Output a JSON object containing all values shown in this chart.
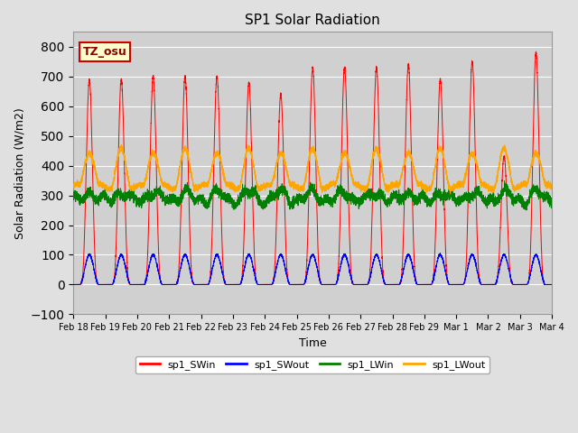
{
  "title": "SP1 Solar Radiation",
  "xlabel": "Time",
  "ylabel": "Solar Radiation (W/m2)",
  "ylim": [
    -100,
    850
  ],
  "yticks": [
    -100,
    0,
    100,
    200,
    300,
    400,
    500,
    600,
    700,
    800
  ],
  "background_color": "#e0e0e0",
  "plot_bg_color": "#d0d0d0",
  "grid_color": "white",
  "colors": {
    "sp1_SWin": "red",
    "sp1_SWout": "blue",
    "sp1_LWin": "green",
    "sp1_LWout": "orange"
  },
  "tz_label": "TZ_osu",
  "tz_box_facecolor": "#ffffcc",
  "tz_box_edgecolor": "#cc0000",
  "n_days": 15,
  "start_day": 18,
  "points_per_day": 480,
  "sw_peaks": [
    690,
    690,
    700,
    700,
    700,
    680,
    640,
    730,
    730,
    730,
    740,
    690,
    750,
    430,
    780
  ]
}
